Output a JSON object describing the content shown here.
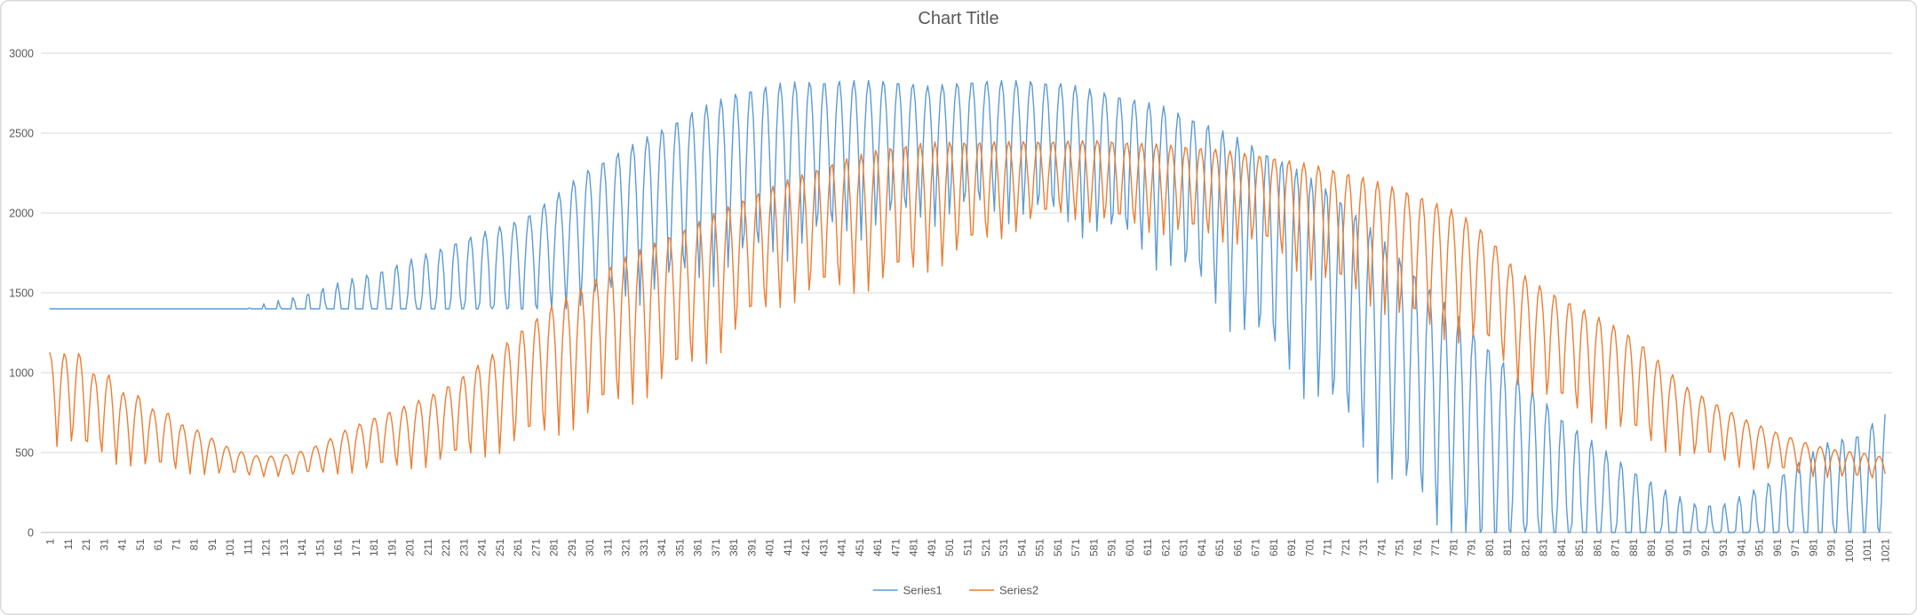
{
  "window": {
    "background": "#FFFFFF",
    "border_color": "#D9D9D9"
  },
  "chart": {
    "title": "Chart Title",
    "title_color": "#595959",
    "title_font_size": 20,
    "axis_text_color": "#595959",
    "gridline_color": "#D9D9D9",
    "axis_line_color": "#C6C6C6",
    "legend": [
      {
        "label": "Series1",
        "color": "#5B9BD5"
      },
      {
        "label": "Series2",
        "color": "#ED7D31"
      }
    ]
  },
  "chart_data": {
    "type": "line",
    "title": "Chart Title",
    "xlabel": "",
    "ylabel": "",
    "x_range": [
      1,
      1021
    ],
    "ylim": [
      0,
      3000
    ],
    "y_ticks": [
      0,
      500,
      1000,
      1500,
      2000,
      2500,
      3000
    ],
    "x_ticks": [
      1,
      11,
      21,
      31,
      41,
      51,
      61,
      71,
      81,
      91,
      101,
      111,
      121,
      131,
      141,
      151,
      161,
      171,
      181,
      191,
      201,
      211,
      221,
      231,
      241,
      251,
      261,
      271,
      281,
      291,
      301,
      311,
      321,
      331,
      341,
      351,
      361,
      371,
      381,
      391,
      401,
      411,
      421,
      431,
      441,
      451,
      461,
      471,
      481,
      491,
      501,
      511,
      521,
      531,
      541,
      551,
      561,
      571,
      581,
      591,
      601,
      611,
      621,
      631,
      641,
      651,
      661,
      671,
      681,
      691,
      701,
      711,
      721,
      731,
      741,
      751,
      761,
      771,
      781,
      791,
      801,
      811,
      821,
      831,
      841,
      851,
      861,
      871,
      881,
      891,
      901,
      911,
      921,
      931,
      941,
      951,
      961,
      971,
      981,
      991,
      1001,
      1011,
      1021
    ],
    "grid": "horizontal",
    "legend_position": "bottom-center",
    "sample_step": 1,
    "model_formula": "value(x) = max(floor(x), L(x) + (U(x) - L(x)) * abs(sin(pi*(x - phase)/period))), x = 1..1021; U,L,floor piecewise-linear keyframes [x,value]",
    "series": [
      {
        "name": "Series1",
        "color": "#5B9BD5",
        "line_width": 1.4,
        "model": {
          "type": "clipped_rectified_sine",
          "period": 8.2,
          "phase": 1.0,
          "upper_envelope_keys": [
            [
              1,
              1350
            ],
            [
              105,
              1350
            ],
            [
              112,
              1410
            ],
            [
              125,
              1445
            ],
            [
              140,
              1485
            ],
            [
              155,
              1540
            ],
            [
              170,
              1595
            ],
            [
              186,
              1645
            ],
            [
              200,
              1705
            ],
            [
              215,
              1765
            ],
            [
              230,
              1835
            ],
            [
              248,
              1905
            ],
            [
              264,
              1965
            ],
            [
              282,
              2110
            ],
            [
              298,
              2260
            ],
            [
              320,
              2400
            ],
            [
              340,
              2520
            ],
            [
              360,
              2650
            ],
            [
              385,
              2765
            ],
            [
              410,
              2820
            ],
            [
              440,
              2830
            ],
            [
              470,
              2830
            ],
            [
              490,
              2795
            ],
            [
              515,
              2830
            ],
            [
              545,
              2830
            ],
            [
              565,
              2815
            ],
            [
              590,
              2750
            ],
            [
              620,
              2670
            ],
            [
              645,
              2555
            ],
            [
              665,
              2455
            ],
            [
              690,
              2305
            ],
            [
              715,
              2125
            ],
            [
              740,
              1855
            ],
            [
              765,
              1565
            ],
            [
              790,
              1285
            ],
            [
              806,
              1105
            ],
            [
              824,
              915
            ],
            [
              841,
              725
            ],
            [
              860,
              560
            ],
            [
              880,
              400
            ],
            [
              900,
              260
            ],
            [
              915,
              185
            ],
            [
              930,
              175
            ],
            [
              945,
              250
            ],
            [
              960,
              335
            ],
            [
              975,
              460
            ],
            [
              988,
              560
            ],
            [
              1000,
              600
            ],
            [
              1010,
              625
            ],
            [
              1021,
              800
            ]
          ],
          "lower_envelope_keys": [
            [
              1,
              700
            ],
            [
              105,
              700
            ],
            [
              150,
              760
            ],
            [
              200,
              860
            ],
            [
              250,
              1150
            ],
            [
              290,
              1340
            ],
            [
              320,
              1400
            ],
            [
              360,
              1500
            ],
            [
              400,
              1660
            ],
            [
              440,
              1800
            ],
            [
              480,
              1900
            ],
            [
              520,
              1950
            ],
            [
              560,
              1900
            ],
            [
              600,
              1750
            ],
            [
              630,
              1550
            ],
            [
              655,
              1280
            ],
            [
              680,
              1010
            ],
            [
              700,
              820
            ],
            [
              720,
              560
            ],
            [
              740,
              300
            ],
            [
              760,
              60
            ],
            [
              780,
              -160
            ],
            [
              800,
              -360
            ],
            [
              830,
              -520
            ],
            [
              860,
              -630
            ],
            [
              900,
              -660
            ],
            [
              930,
              -610
            ],
            [
              950,
              -520
            ],
            [
              970,
              -420
            ],
            [
              990,
              -360
            ],
            [
              1021,
              -260
            ]
          ],
          "floor_keys": [
            [
              1,
              1400
            ],
            [
              500,
              1400
            ],
            [
              542,
              0
            ],
            [
              1021,
              0
            ]
          ]
        }
      },
      {
        "name": "Series2",
        "color": "#ED7D31",
        "line_width": 1.4,
        "model": {
          "type": "clipped_rectified_sine",
          "period": 8.2,
          "phase": -3.1,
          "upper_envelope_keys": [
            [
              1,
              1125
            ],
            [
              9,
              1122
            ],
            [
              17,
              1128
            ],
            [
              26,
              992
            ],
            [
              34,
              988
            ],
            [
              43,
              862
            ],
            [
              51,
              858
            ],
            [
              60,
              756
            ],
            [
              68,
              750
            ],
            [
              77,
              652
            ],
            [
              85,
              640
            ],
            [
              95,
              560
            ],
            [
              105,
              515
            ],
            [
              115,
              482
            ],
            [
              125,
              478
            ],
            [
              135,
              492
            ],
            [
              145,
              522
            ],
            [
              155,
              575
            ],
            [
              165,
              640
            ],
            [
              175,
              690
            ],
            [
              186,
              740
            ],
            [
              200,
              800
            ],
            [
              212,
              855
            ],
            [
              225,
              935
            ],
            [
              238,
              1040
            ],
            [
              250,
              1140
            ],
            [
              262,
              1260
            ],
            [
              280,
              1420
            ],
            [
              298,
              1540
            ],
            [
              316,
              1700
            ],
            [
              335,
              1805
            ],
            [
              355,
              1910
            ],
            [
              380,
              2055
            ],
            [
              410,
              2205
            ],
            [
              440,
              2330
            ],
            [
              465,
              2410
            ],
            [
              490,
              2445
            ],
            [
              555,
              2450
            ],
            [
              585,
              2455
            ],
            [
              620,
              2430
            ],
            [
              650,
              2400
            ],
            [
              680,
              2350
            ],
            [
              705,
              2300
            ],
            [
              730,
              2230
            ],
            [
              760,
              2120
            ],
            [
              785,
              2000
            ],
            [
              800,
              1870
            ],
            [
              815,
              1655
            ],
            [
              830,
              1540
            ],
            [
              841,
              1470
            ],
            [
              855,
              1390
            ],
            [
              870,
              1300
            ],
            [
              883,
              1210
            ],
            [
              895,
              1080
            ],
            [
              908,
              930
            ],
            [
              925,
              820
            ],
            [
              943,
              710
            ],
            [
              958,
              640
            ],
            [
              970,
              590
            ],
            [
              982,
              545
            ],
            [
              995,
              515
            ],
            [
              1008,
              500
            ],
            [
              1021,
              470
            ]
          ],
          "lower_envelope_keys": [
            [
              1,
              520
            ],
            [
              9,
              510
            ],
            [
              14,
              500
            ],
            [
              22,
              455
            ],
            [
              30,
              442
            ],
            [
              39,
              402
            ],
            [
              47,
              398
            ],
            [
              56,
              372
            ],
            [
              64,
              368
            ],
            [
              73,
              357
            ],
            [
              81,
              355
            ],
            [
              95,
              348
            ],
            [
              110,
              342
            ],
            [
              130,
              345
            ],
            [
              150,
              352
            ],
            [
              170,
              360
            ],
            [
              190,
              372
            ],
            [
              210,
              390
            ],
            [
              230,
              420
            ],
            [
              250,
              465
            ],
            [
              270,
              520
            ],
            [
              290,
              600
            ],
            [
              310,
              690
            ],
            [
              330,
              790
            ],
            [
              350,
              900
            ],
            [
              370,
              1050
            ],
            [
              390,
              1250
            ],
            [
              410,
              1400
            ],
            [
              440,
              1450
            ],
            [
              465,
              1490
            ],
            [
              490,
              1600
            ],
            [
              520,
              1760
            ],
            [
              545,
              1900
            ],
            [
              565,
              1950
            ],
            [
              590,
              1900
            ],
            [
              620,
              1840
            ],
            [
              650,
              1800
            ],
            [
              675,
              1760
            ],
            [
              700,
              1560
            ],
            [
              715,
              1480
            ],
            [
              730,
              1420
            ],
            [
              755,
              1250
            ],
            [
              780,
              1160
            ],
            [
              797,
              1130
            ],
            [
              821,
              850
            ],
            [
              840,
              740
            ],
            [
              856,
              670
            ],
            [
              875,
              580
            ],
            [
              892,
              500
            ],
            [
              912,
              450
            ],
            [
              935,
              405
            ],
            [
              955,
              370
            ],
            [
              975,
              345
            ],
            [
              1000,
              330
            ],
            [
              1021,
              320
            ]
          ],
          "floor_keys": [
            [
              1,
              300
            ],
            [
              1021,
              300
            ]
          ]
        }
      }
    ]
  }
}
